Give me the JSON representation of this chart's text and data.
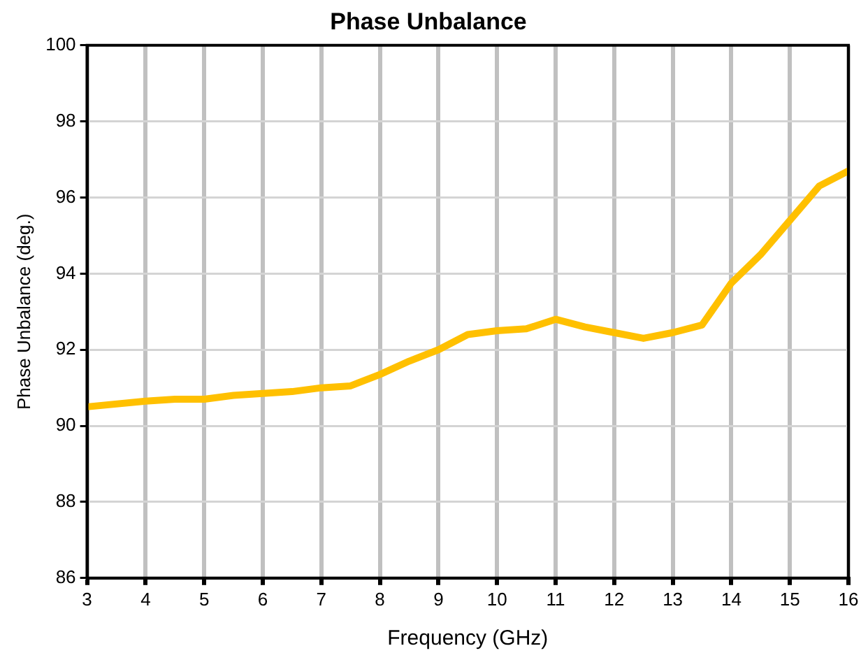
{
  "chart_data": {
    "type": "line",
    "title": "Phase Unbalance",
    "xlabel": "Frequency (GHz)",
    "ylabel": "Phase Unbalance (deg.)",
    "x": [
      3,
      4,
      4.5,
      5,
      5.5,
      6,
      6.5,
      7,
      7.5,
      8,
      8.5,
      9,
      9.5,
      10,
      10.5,
      11,
      11.5,
      12,
      12.5,
      13,
      13.5,
      14,
      14.5,
      15,
      15.5,
      16
    ],
    "series": [
      {
        "color": "#ffc000",
        "values": [
          90.5,
          90.65,
          90.7,
          90.7,
          90.8,
          90.85,
          90.9,
          91.0,
          91.05,
          91.35,
          91.7,
          92.0,
          92.4,
          92.5,
          92.55,
          92.8,
          92.6,
          92.45,
          92.3,
          92.45,
          92.65,
          93.75,
          94.5,
          95.4,
          96.3,
          96.7
        ]
      }
    ],
    "xlim": [
      3,
      16
    ],
    "xticks": [
      3,
      4,
      5,
      6,
      7,
      8,
      9,
      10,
      11,
      12,
      13,
      14,
      15,
      16
    ],
    "ylim": [
      86,
      100
    ],
    "yticks": [
      86,
      88,
      90,
      92,
      94,
      96,
      98,
      100
    ],
    "grid": true,
    "legend": false,
    "marker": "none",
    "line_style": "solid"
  }
}
